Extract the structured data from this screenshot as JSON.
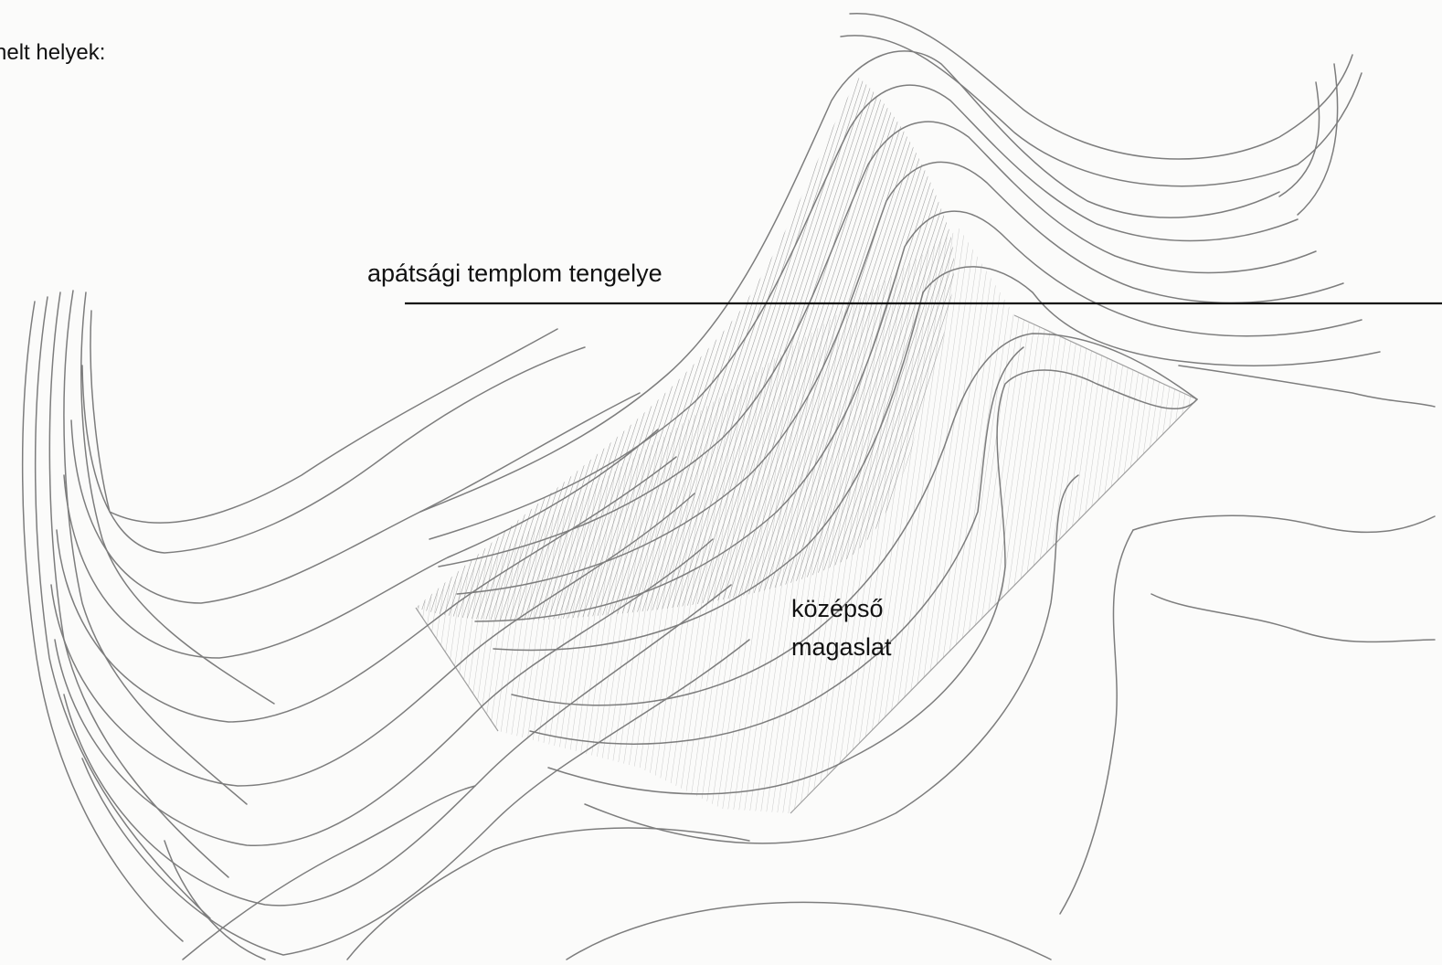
{
  "map": {
    "corner_label": "helt helyek:",
    "axis_label": "apátsági templom tengelye",
    "hill_label_line1": "középső",
    "hill_label_line2": "magaslat"
  },
  "colors": {
    "paper": "#fbfbfa",
    "contour_line": "#7d7d7d",
    "axis_line": "#111111",
    "hatch_dark": "#8a8a8a",
    "hatch_light": "#b2b2b2"
  }
}
